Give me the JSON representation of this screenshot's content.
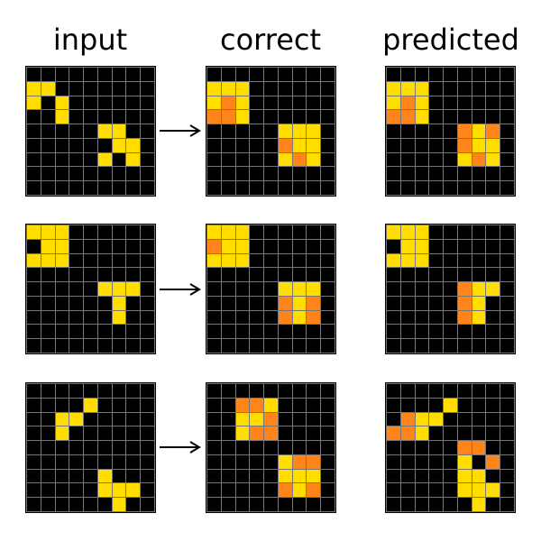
{
  "columns": {
    "input": "input",
    "correct": "correct",
    "predicted": "predicted"
  },
  "colors": {
    "0": "#000000",
    "4": "#ffdd00",
    "7": "#ff851b"
  },
  "rows": [
    {
      "input": [
        [
          0,
          0,
          0,
          0,
          0,
          0,
          0,
          0,
          0
        ],
        [
          4,
          4,
          0,
          0,
          0,
          0,
          0,
          0,
          0
        ],
        [
          4,
          0,
          4,
          0,
          0,
          0,
          0,
          0,
          0
        ],
        [
          0,
          0,
          4,
          0,
          0,
          0,
          0,
          0,
          0
        ],
        [
          0,
          0,
          0,
          0,
          0,
          4,
          4,
          0,
          0
        ],
        [
          0,
          0,
          0,
          0,
          0,
          0,
          4,
          4,
          0
        ],
        [
          0,
          0,
          0,
          0,
          0,
          4,
          0,
          4,
          0
        ],
        [
          0,
          0,
          0,
          0,
          0,
          0,
          0,
          0,
          0
        ],
        [
          0,
          0,
          0,
          0,
          0,
          0,
          0,
          0,
          0
        ]
      ],
      "correct": [
        [
          0,
          0,
          0,
          0,
          0,
          0,
          0,
          0,
          0
        ],
        [
          4,
          4,
          4,
          0,
          0,
          0,
          0,
          0,
          0
        ],
        [
          4,
          7,
          4,
          0,
          0,
          0,
          0,
          0,
          0
        ],
        [
          7,
          7,
          4,
          0,
          0,
          0,
          0,
          0,
          0
        ],
        [
          0,
          0,
          0,
          0,
          0,
          4,
          4,
          4,
          0
        ],
        [
          0,
          0,
          0,
          0,
          0,
          7,
          4,
          4,
          0
        ],
        [
          0,
          0,
          0,
          0,
          0,
          4,
          7,
          4,
          0
        ],
        [
          0,
          0,
          0,
          0,
          0,
          0,
          0,
          0,
          0
        ],
        [
          0,
          0,
          0,
          0,
          0,
          0,
          0,
          0,
          0
        ]
      ],
      "predicted": [
        [
          0,
          0,
          0,
          0,
          0,
          0,
          0,
          0,
          0
        ],
        [
          4,
          4,
          4,
          0,
          0,
          0,
          0,
          0,
          0
        ],
        [
          4,
          7,
          4,
          0,
          0,
          0,
          0,
          0,
          0
        ],
        [
          7,
          7,
          4,
          0,
          0,
          0,
          0,
          0,
          0
        ],
        [
          0,
          0,
          0,
          0,
          0,
          7,
          4,
          7,
          0
        ],
        [
          0,
          0,
          0,
          0,
          0,
          7,
          4,
          4,
          0
        ],
        [
          0,
          0,
          0,
          0,
          0,
          4,
          7,
          4,
          0
        ],
        [
          0,
          0,
          0,
          0,
          0,
          0,
          0,
          0,
          0
        ],
        [
          0,
          0,
          0,
          0,
          0,
          0,
          0,
          0,
          0
        ]
      ]
    },
    {
      "input": [
        [
          4,
          4,
          4,
          0,
          0,
          0,
          0,
          0,
          0
        ],
        [
          0,
          4,
          4,
          0,
          0,
          0,
          0,
          0,
          0
        ],
        [
          4,
          4,
          4,
          0,
          0,
          0,
          0,
          0,
          0
        ],
        [
          0,
          0,
          0,
          0,
          0,
          0,
          0,
          0,
          0
        ],
        [
          0,
          0,
          0,
          0,
          0,
          4,
          4,
          4,
          0
        ],
        [
          0,
          0,
          0,
          0,
          0,
          0,
          4,
          0,
          0
        ],
        [
          0,
          0,
          0,
          0,
          0,
          0,
          4,
          0,
          0
        ],
        [
          0,
          0,
          0,
          0,
          0,
          0,
          0,
          0,
          0
        ],
        [
          0,
          0,
          0,
          0,
          0,
          0,
          0,
          0,
          0
        ]
      ],
      "correct": [
        [
          4,
          4,
          4,
          0,
          0,
          0,
          0,
          0,
          0
        ],
        [
          7,
          4,
          4,
          0,
          0,
          0,
          0,
          0,
          0
        ],
        [
          4,
          4,
          4,
          0,
          0,
          0,
          0,
          0,
          0
        ],
        [
          0,
          0,
          0,
          0,
          0,
          0,
          0,
          0,
          0
        ],
        [
          0,
          0,
          0,
          0,
          0,
          4,
          4,
          4,
          0
        ],
        [
          0,
          0,
          0,
          0,
          0,
          7,
          4,
          7,
          0
        ],
        [
          0,
          0,
          0,
          0,
          0,
          7,
          4,
          7,
          0
        ],
        [
          0,
          0,
          0,
          0,
          0,
          0,
          0,
          0,
          0
        ],
        [
          0,
          0,
          0,
          0,
          0,
          0,
          0,
          0,
          0
        ]
      ],
      "predicted": [
        [
          4,
          4,
          4,
          0,
          0,
          0,
          0,
          0,
          0
        ],
        [
          0,
          4,
          4,
          0,
          0,
          0,
          0,
          0,
          0
        ],
        [
          4,
          4,
          4,
          0,
          0,
          0,
          0,
          0,
          0
        ],
        [
          0,
          0,
          0,
          0,
          0,
          0,
          0,
          0,
          0
        ],
        [
          0,
          0,
          0,
          0,
          0,
          7,
          4,
          4,
          0
        ],
        [
          0,
          0,
          0,
          0,
          0,
          7,
          4,
          0,
          0
        ],
        [
          0,
          0,
          0,
          0,
          0,
          7,
          4,
          0,
          0
        ],
        [
          0,
          0,
          0,
          0,
          0,
          0,
          0,
          0,
          0
        ],
        [
          0,
          0,
          0,
          0,
          0,
          0,
          0,
          0,
          0
        ]
      ]
    },
    {
      "input": [
        [
          0,
          0,
          0,
          0,
          0,
          0,
          0,
          0,
          0
        ],
        [
          0,
          0,
          0,
          0,
          4,
          0,
          0,
          0,
          0
        ],
        [
          0,
          0,
          4,
          4,
          0,
          0,
          0,
          0,
          0
        ],
        [
          0,
          0,
          4,
          0,
          0,
          0,
          0,
          0,
          0
        ],
        [
          0,
          0,
          0,
          0,
          0,
          0,
          0,
          0,
          0
        ],
        [
          0,
          0,
          0,
          0,
          0,
          0,
          0,
          0,
          0
        ],
        [
          0,
          0,
          0,
          0,
          0,
          4,
          0,
          0,
          0
        ],
        [
          0,
          0,
          0,
          0,
          0,
          4,
          4,
          4,
          0
        ],
        [
          0,
          0,
          0,
          0,
          0,
          0,
          4,
          0,
          0
        ]
      ],
      "correct": [
        [
          0,
          0,
          0,
          0,
          0,
          0,
          0,
          0,
          0
        ],
        [
          0,
          0,
          7,
          7,
          4,
          0,
          0,
          0,
          0
        ],
        [
          0,
          0,
          4,
          4,
          7,
          0,
          0,
          0,
          0
        ],
        [
          0,
          0,
          4,
          7,
          7,
          0,
          0,
          0,
          0
        ],
        [
          0,
          0,
          0,
          0,
          0,
          0,
          0,
          0,
          0
        ],
        [
          0,
          0,
          0,
          0,
          0,
          4,
          7,
          7,
          0
        ],
        [
          0,
          0,
          0,
          0,
          0,
          4,
          4,
          4,
          0
        ],
        [
          0,
          0,
          0,
          0,
          0,
          7,
          4,
          7,
          0
        ],
        [
          0,
          0,
          0,
          0,
          0,
          0,
          0,
          0,
          0
        ]
      ],
      "predicted": [
        [
          0,
          0,
          0,
          0,
          0,
          0,
          0,
          0,
          0
        ],
        [
          0,
          0,
          0,
          0,
          4,
          0,
          0,
          0,
          0
        ],
        [
          0,
          7,
          4,
          4,
          0,
          0,
          0,
          0,
          0
        ],
        [
          7,
          7,
          4,
          0,
          0,
          0,
          0,
          0,
          0
        ],
        [
          0,
          0,
          0,
          0,
          0,
          7,
          7,
          0,
          0
        ],
        [
          0,
          0,
          0,
          0,
          0,
          4,
          0,
          7,
          0
        ],
        [
          0,
          0,
          0,
          0,
          0,
          4,
          4,
          0,
          0
        ],
        [
          0,
          0,
          0,
          0,
          0,
          4,
          4,
          4,
          0
        ],
        [
          0,
          0,
          0,
          0,
          0,
          0,
          4,
          0,
          0
        ]
      ]
    }
  ]
}
